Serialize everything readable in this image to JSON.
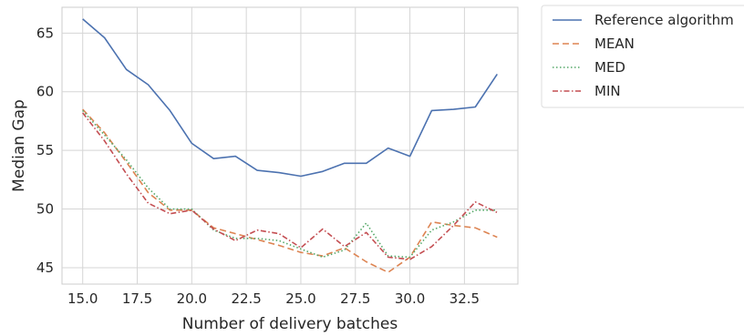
{
  "chart_data": {
    "type": "line",
    "title": "",
    "xlabel": "Number of delivery batches",
    "ylabel": "Median Gap",
    "xlim": [
      14.05,
      34.95
    ],
    "ylim": [
      43.6,
      67.2
    ],
    "xticks": [
      "15.0",
      "17.5",
      "20.0",
      "22.5",
      "25.0",
      "27.5",
      "30.0",
      "32.5"
    ],
    "yticks": [
      "45",
      "50",
      "55",
      "60",
      "65"
    ],
    "grid": true,
    "legend_position": "outside-top-right",
    "x": [
      15,
      16,
      17,
      18,
      19,
      20,
      21,
      22,
      23,
      24,
      25,
      26,
      27,
      28,
      29,
      30,
      31,
      32,
      33,
      34
    ],
    "series": [
      {
        "name": "Reference algorithm",
        "color": "#4c72b0",
        "dash": "solid",
        "values": [
          66.2,
          64.6,
          61.9,
          60.6,
          58.4,
          55.6,
          54.3,
          54.5,
          53.3,
          53.1,
          52.8,
          53.2,
          53.9,
          53.9,
          55.2,
          54.5,
          58.4,
          58.5,
          58.7,
          61.5
        ]
      },
      {
        "name": "MEAN",
        "color": "#dd8452",
        "dash": "dashed",
        "values": [
          58.5,
          56.5,
          54.0,
          51.4,
          49.9,
          49.9,
          48.4,
          47.9,
          47.4,
          46.9,
          46.3,
          46.0,
          46.7,
          45.5,
          44.6,
          45.9,
          48.9,
          48.6,
          48.4,
          47.6
        ]
      },
      {
        "name": "MED",
        "color": "#55a868",
        "dash": "dotted",
        "values": [
          58.4,
          56.3,
          54.2,
          51.8,
          50.0,
          50.0,
          48.2,
          47.5,
          47.5,
          47.3,
          46.6,
          45.9,
          46.5,
          48.8,
          46.0,
          45.9,
          48.2,
          48.9,
          49.9,
          49.9
        ]
      },
      {
        "name": "MIN",
        "color": "#c44e52",
        "dash": "dashdot",
        "values": [
          58.2,
          55.8,
          53.0,
          50.5,
          49.6,
          49.9,
          48.3,
          47.3,
          48.2,
          47.9,
          46.7,
          48.3,
          46.8,
          48.0,
          45.9,
          45.7,
          46.8,
          48.6,
          50.6,
          49.7
        ]
      }
    ]
  }
}
